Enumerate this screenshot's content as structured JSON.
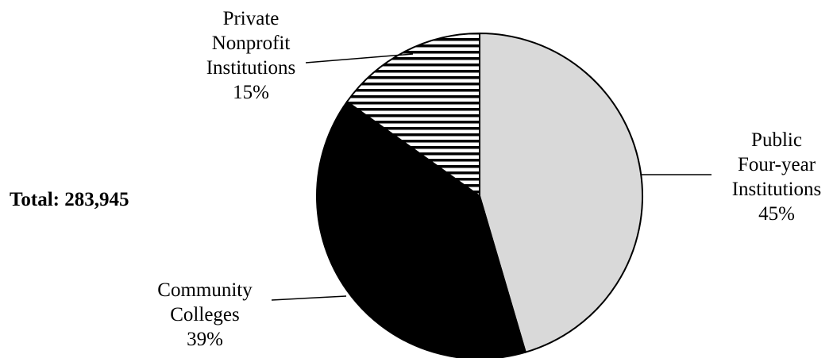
{
  "chart_data": {
    "type": "pie",
    "title": "",
    "total_label": "Total:  283,945",
    "slices": [
      {
        "name": "Public Four-year Institutions",
        "value": 45,
        "label_lines": [
          "Public",
          "Four-year",
          "Institutions",
          "45%"
        ],
        "fill": "solid",
        "color": "#d9d9d9"
      },
      {
        "name": "Community Colleges",
        "value": 39,
        "label_lines": [
          "Community",
          "Colleges",
          "39%"
        ],
        "fill": "solid",
        "color": "#000000"
      },
      {
        "name": "Private Nonprofit Institutions",
        "value": 15,
        "label_lines": [
          "Private",
          "Nonprofit",
          "Institutions",
          "15%"
        ],
        "fill": "horizontal-stripes",
        "color": "#000000"
      }
    ],
    "start": "12 o'clock",
    "direction": "clockwise",
    "legend": "none"
  }
}
